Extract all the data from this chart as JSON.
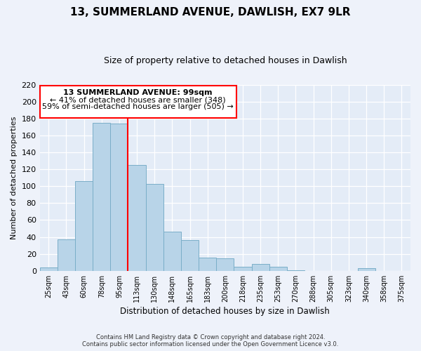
{
  "title": "13, SUMMERLAND AVENUE, DAWLISH, EX7 9LR",
  "subtitle": "Size of property relative to detached houses in Dawlish",
  "xlabel": "Distribution of detached houses by size in Dawlish",
  "ylabel": "Number of detached properties",
  "bar_labels": [
    "25sqm",
    "43sqm",
    "60sqm",
    "78sqm",
    "95sqm",
    "113sqm",
    "130sqm",
    "148sqm",
    "165sqm",
    "183sqm",
    "200sqm",
    "218sqm",
    "235sqm",
    "253sqm",
    "270sqm",
    "288sqm",
    "305sqm",
    "323sqm",
    "340sqm",
    "358sqm",
    "375sqm"
  ],
  "bar_heights": [
    4,
    37,
    106,
    175,
    174,
    125,
    103,
    46,
    36,
    16,
    15,
    5,
    8,
    5,
    1,
    0,
    0,
    0,
    3,
    0,
    0
  ],
  "bar_color": "#b8d4e8",
  "bar_edge_color": "#7aaec8",
  "vline_x": 4.5,
  "vline_color": "red",
  "ylim": [
    0,
    220
  ],
  "yticks": [
    0,
    20,
    40,
    60,
    80,
    100,
    120,
    140,
    160,
    180,
    200,
    220
  ],
  "annotation_title": "13 SUMMERLAND AVENUE: 99sqm",
  "annotation_line1": "← 41% of detached houses are smaller (348)",
  "annotation_line2": "59% of semi-detached houses are larger (505) →",
  "footer1": "Contains HM Land Registry data © Crown copyright and database right 2024.",
  "footer2": "Contains public sector information licensed under the Open Government Licence v3.0.",
  "bg_color": "#eef2fa",
  "plot_bg_color": "#e4ecf7"
}
